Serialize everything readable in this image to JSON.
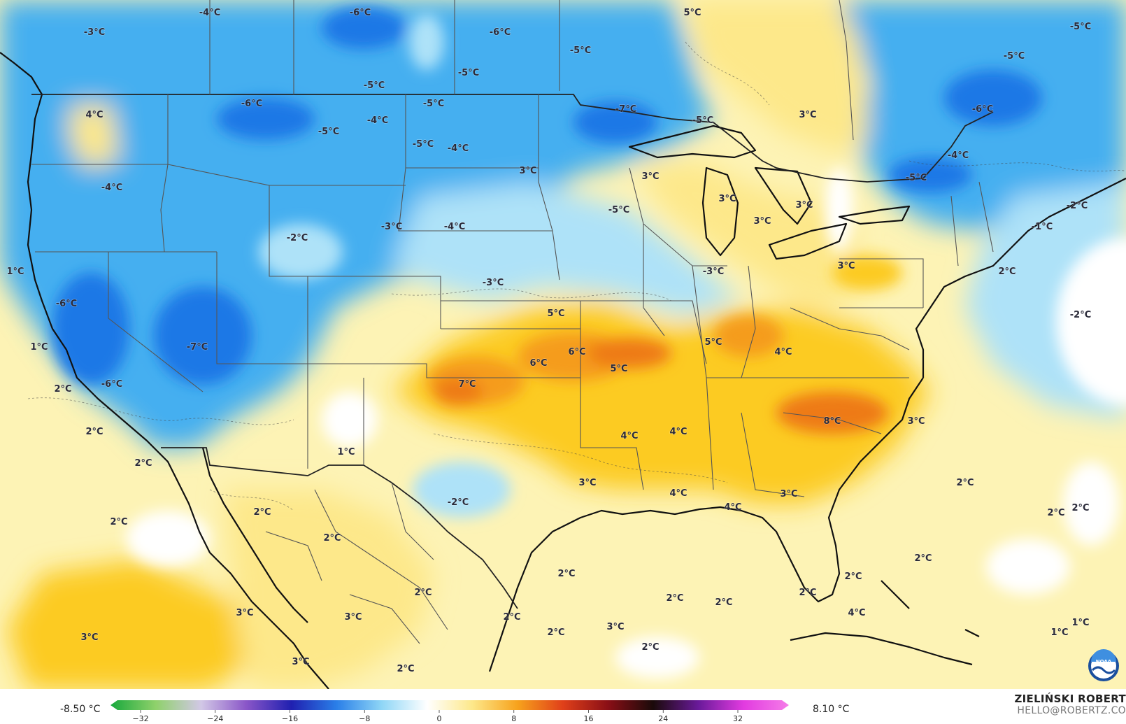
{
  "map": {
    "colors": {
      "ocean_warm": "#fdf3b5",
      "cold_dark": "#1e78e6",
      "cold_mid": "#45aff0",
      "cold_light": "#aee2f8",
      "neutral": "#ffffff",
      "warm_light": "#fde88a",
      "warm_mid": "#fccb24",
      "warm_strong": "#f59c1a",
      "hot": "#ee7a14",
      "border": "#555555",
      "coast": "#111111"
    },
    "temperature_labels": [
      {
        "text": "-4°C"
      },
      {
        "text": "-6°C"
      },
      {
        "text": "5°C"
      },
      {
        "text": "-5°C"
      },
      {
        "text": "-3°C"
      },
      {
        "text": "-6°C"
      },
      {
        "text": "-5°C"
      },
      {
        "text": "-5°C"
      },
      {
        "text": "-5°C"
      },
      {
        "text": "-5°C"
      },
      {
        "text": "4°C"
      },
      {
        "text": "-6°C"
      },
      {
        "text": "-5°C"
      },
      {
        "text": "-7°C"
      },
      {
        "text": "-5°C"
      },
      {
        "text": "3°C"
      },
      {
        "text": "-6°C"
      },
      {
        "text": "-4°C"
      },
      {
        "text": "-5°C"
      },
      {
        "text": "-4°C"
      },
      {
        "text": "-5°C"
      },
      {
        "text": "-4°C"
      },
      {
        "text": "-4°C"
      },
      {
        "text": "3°C"
      },
      {
        "text": "3°C"
      },
      {
        "text": "-5°C"
      },
      {
        "text": "-2°C"
      },
      {
        "text": "3°C"
      },
      {
        "text": "3°C"
      },
      {
        "text": "-5°C"
      },
      {
        "text": "3°C"
      },
      {
        "text": "-3°C"
      },
      {
        "text": "-4°C"
      },
      {
        "text": "-1°C"
      },
      {
        "text": "-2°C"
      },
      {
        "text": "1°C"
      },
      {
        "text": "-3°C"
      },
      {
        "text": "3°C"
      },
      {
        "text": "2°C"
      },
      {
        "text": "-3°C"
      },
      {
        "text": "-6°C"
      },
      {
        "text": "5°C"
      },
      {
        "text": "-2°C"
      },
      {
        "text": "1°C"
      },
      {
        "text": "-7°C"
      },
      {
        "text": "6°C"
      },
      {
        "text": "5°C"
      },
      {
        "text": "4°C"
      },
      {
        "text": "6°C"
      },
      {
        "text": "5°C"
      },
      {
        "text": "2°C"
      },
      {
        "text": "-6°C"
      },
      {
        "text": "7°C"
      },
      {
        "text": "8°C"
      },
      {
        "text": "3°C"
      },
      {
        "text": "2°C"
      },
      {
        "text": "4°C"
      },
      {
        "text": "4°C"
      },
      {
        "text": "2°C"
      },
      {
        "text": "1°C"
      },
      {
        "text": "2°C"
      },
      {
        "text": "3°C"
      },
      {
        "text": "-2°C"
      },
      {
        "text": "3°C"
      },
      {
        "text": "4°C"
      },
      {
        "text": "2°C"
      },
      {
        "text": "4°C"
      },
      {
        "text": "2°C"
      },
      {
        "text": "2°C"
      },
      {
        "text": "2°C"
      },
      {
        "text": "2°C"
      },
      {
        "text": "2°C"
      },
      {
        "text": "2°C"
      },
      {
        "text": "2°C"
      },
      {
        "text": "2°C"
      },
      {
        "text": "2°C"
      },
      {
        "text": "2°C"
      },
      {
        "text": "2°C"
      },
      {
        "text": "4°C"
      },
      {
        "text": "3°C"
      },
      {
        "text": "3°C"
      },
      {
        "text": "2°C"
      },
      {
        "text": "2°C"
      },
      {
        "text": "1°C"
      },
      {
        "text": "1°C"
      },
      {
        "text": "3°C"
      },
      {
        "text": "3°C"
      },
      {
        "text": "3°C"
      },
      {
        "text": "2°C"
      },
      {
        "text": "2°C"
      }
    ]
  },
  "legend": {
    "min_label": "-8.50 °C",
    "max_label": "8.10 °C",
    "ticks": [
      "−32",
      "−24",
      "−16",
      "−8",
      "0",
      "8",
      "16",
      "24",
      "32"
    ],
    "gradient_colors": [
      "#18a83c",
      "#8fd16b",
      "#d2c8e6",
      "#8a56c8",
      "#2020b0",
      "#2a7fe8",
      "#8fd6f6",
      "#ffffff",
      "#fde88a",
      "#f7a21c",
      "#e0401a",
      "#8a0f16",
      "#1a0a0a",
      "#6a1a9a",
      "#e23be0",
      "#f57de8"
    ]
  },
  "credits": {
    "name": "ZIELIŃSKI ROBERT",
    "email": "HELLO@ROBERTZ.CO"
  },
  "logo": {
    "icon": "noaa-logo",
    "text": "NOAA"
  }
}
